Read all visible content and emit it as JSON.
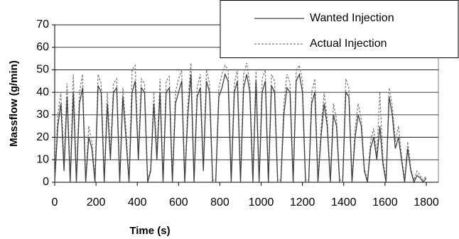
{
  "chart_data": {
    "type": "line",
    "x_label": "Time (s)",
    "y_label": "Massflow (g/min)",
    "x": [
      0,
      15,
      30,
      45,
      60,
      75,
      90,
      105,
      120,
      135,
      150,
      165,
      180,
      195,
      210,
      225,
      240,
      255,
      270,
      285,
      300,
      315,
      330,
      345,
      360,
      375,
      390,
      405,
      420,
      435,
      450,
      465,
      480,
      495,
      510,
      525,
      540,
      555,
      570,
      585,
      600,
      615,
      630,
      645,
      660,
      675,
      690,
      705,
      720,
      735,
      750,
      765,
      780,
      795,
      810,
      825,
      840,
      855,
      870,
      885,
      900,
      915,
      930,
      945,
      960,
      975,
      990,
      1005,
      1020,
      1035,
      1050,
      1065,
      1080,
      1095,
      1110,
      1125,
      1140,
      1155,
      1170,
      1185,
      1200,
      1215,
      1230,
      1245,
      1260,
      1275,
      1290,
      1305,
      1320,
      1335,
      1350,
      1365,
      1380,
      1395,
      1410,
      1425,
      1440,
      1455,
      1470,
      1485,
      1500,
      1515,
      1530,
      1545,
      1560,
      1575,
      1590,
      1605,
      1620,
      1635,
      1650,
      1665,
      1680,
      1695,
      1710,
      1725,
      1740,
      1755,
      1770,
      1785,
      1800
    ],
    "series": [
      {
        "name": "Wanted Injection",
        "color": "#404040",
        "dash": false,
        "values": [
          0,
          25,
          35,
          5,
          38,
          0,
          40,
          0,
          35,
          42,
          0,
          20,
          15,
          0,
          43,
          40,
          0,
          35,
          10,
          40,
          42,
          0,
          38,
          20,
          0,
          40,
          45,
          10,
          42,
          40,
          0,
          5,
          35,
          10,
          40,
          0,
          40,
          42,
          0,
          35,
          40,
          45,
          0,
          30,
          48,
          0,
          38,
          42,
          5,
          45,
          40,
          0,
          0,
          38,
          42,
          48,
          45,
          0,
          40,
          45,
          0,
          42,
          48,
          40,
          0,
          45,
          0,
          40,
          45,
          0,
          43,
          40,
          0,
          0,
          30,
          42,
          40,
          0,
          45,
          48,
          40,
          0,
          0,
          35,
          40,
          0,
          20,
          35,
          25,
          0,
          30,
          25,
          0,
          0,
          40,
          38,
          0,
          20,
          30,
          25,
          5,
          0,
          15,
          20,
          10,
          25,
          8,
          0,
          38,
          30,
          15,
          20,
          10,
          0,
          15,
          5,
          0,
          3,
          2,
          0,
          2
        ]
      },
      {
        "name": "Actual Injection",
        "color": "#808080",
        "dash": true,
        "values": [
          2,
          30,
          40,
          8,
          44,
          1,
          48,
          2,
          40,
          48,
          1,
          25,
          18,
          2,
          48,
          44,
          1,
          40,
          12,
          44,
          46,
          2,
          42,
          24,
          1,
          50,
          52,
          12,
          46,
          44,
          1,
          6,
          40,
          12,
          46,
          1,
          45,
          47,
          2,
          40,
          46,
          50,
          1,
          35,
          53,
          2,
          42,
          48,
          6,
          50,
          44,
          1,
          1,
          42,
          48,
          52,
          50,
          2,
          44,
          50,
          1,
          48,
          53,
          44,
          2,
          50,
          1,
          46,
          50,
          1,
          48,
          45,
          1,
          1,
          35,
          48,
          44,
          1,
          50,
          52,
          45,
          1,
          1,
          40,
          46,
          1,
          24,
          40,
          28,
          1,
          35,
          28,
          1,
          1,
          46,
          42,
          1,
          24,
          35,
          28,
          6,
          1,
          18,
          24,
          12,
          40,
          10,
          1,
          42,
          34,
          18,
          25,
          12,
          1,
          18,
          6,
          1,
          5,
          3,
          1,
          3
        ]
      }
    ],
    "xlim": [
      0,
      1800
    ],
    "xticks": [
      0,
      200,
      400,
      600,
      800,
      1000,
      1200,
      1400,
      1600,
      1800
    ],
    "ylim": [
      0,
      70
    ],
    "yticks": [
      0,
      10,
      20,
      30,
      40,
      50,
      60,
      70
    ],
    "grid": true
  }
}
